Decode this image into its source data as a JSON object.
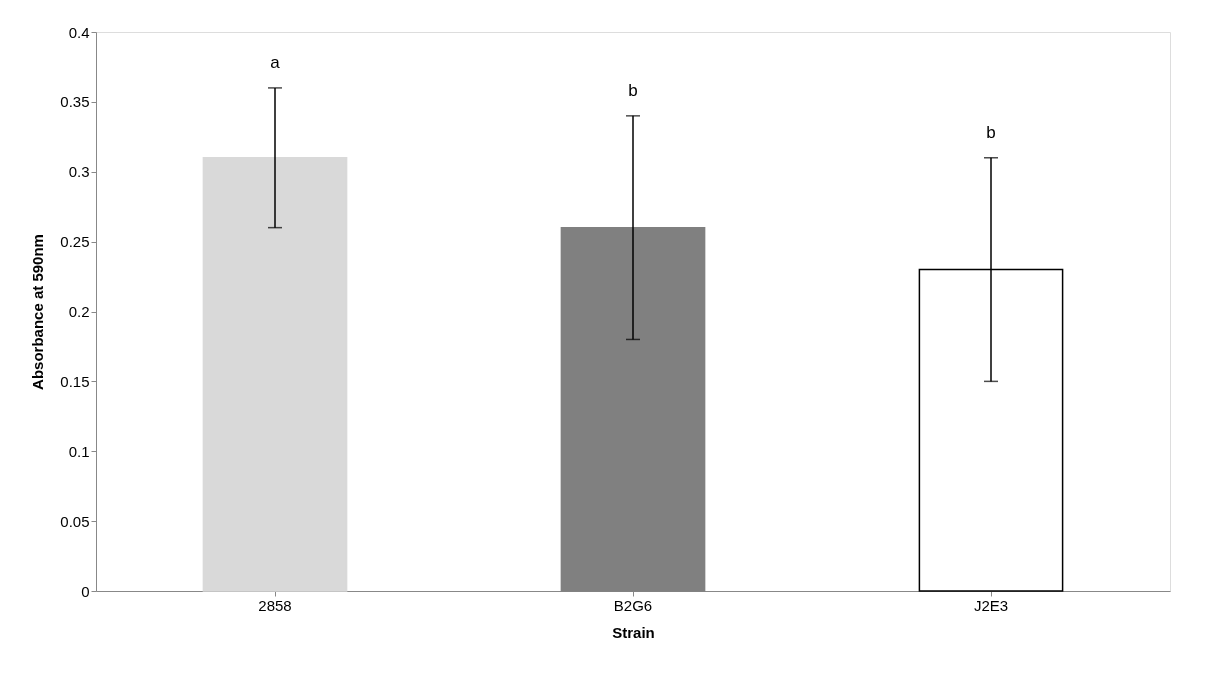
{
  "chart_data": {
    "type": "bar",
    "xlabel": "Strain",
    "ylabel": "Absorbance at 590nm",
    "categories": [
      "2858",
      "B2G6",
      "J2E3"
    ],
    "values": [
      0.31,
      0.26,
      0.23
    ],
    "colors": [
      "#d9d9d9",
      "#808080",
      "#ffffff"
    ],
    "errors": [
      0.05,
      0.08,
      0.08
    ],
    "ylim": [
      0,
      0.4
    ],
    "yticks": [
      0,
      0.05,
      0.1,
      0.15,
      0.2,
      0.25,
      0.3,
      0.35,
      0.4
    ],
    "grid": false,
    "annotations": [
      {
        "text": "a",
        "x": "2858",
        "y": 0.36
      },
      {
        "text": "b",
        "x": "B2G6",
        "y": 0.34
      },
      {
        "text": "b",
        "x": "J2E3",
        "y": 0.31
      }
    ]
  }
}
